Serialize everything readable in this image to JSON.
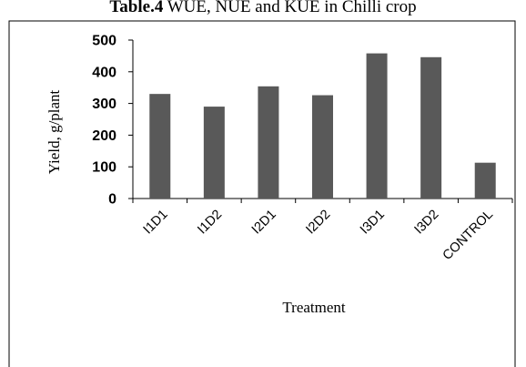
{
  "caption": {
    "bold_part": "Table.4",
    "rest": " WUE, NUE and KUE in Chilli crop"
  },
  "colors": {
    "bar": "#595959",
    "axis": "#000000",
    "frame": "#000000"
  },
  "chart_data": {
    "type": "bar",
    "title": "",
    "xlabel": "Treatment",
    "ylabel": "Yield, g/plant",
    "categories": [
      "I1D1",
      "I1D2",
      "I2D1",
      "I2D2",
      "I3D1",
      "I3D2",
      "CONTROL"
    ],
    "values": [
      330,
      290,
      354,
      326,
      458,
      446,
      113
    ],
    "ylim": [
      0,
      500
    ],
    "yticks": [
      0,
      100,
      200,
      300,
      400,
      500
    ],
    "grid": false,
    "legend": "none"
  }
}
